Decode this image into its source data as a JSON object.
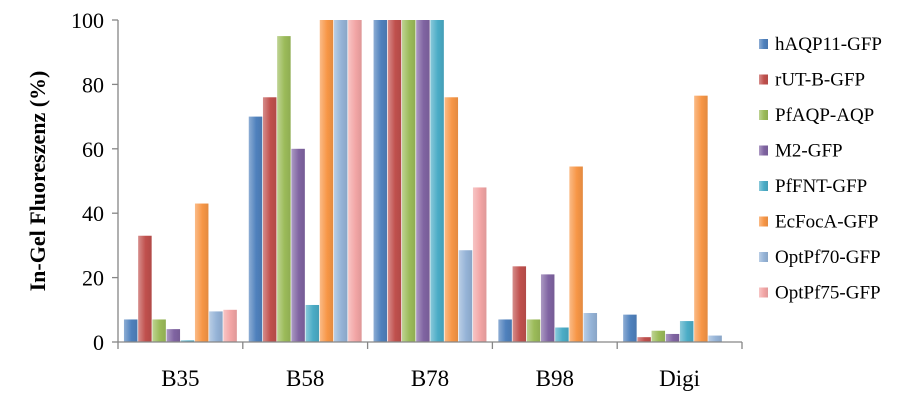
{
  "chart_data": {
    "type": "bar",
    "title": "",
    "xlabel": "",
    "ylabel": "In-Gel Fluoreszenz (%)",
    "ylim": [
      0,
      100
    ],
    "yticks": [
      0,
      20,
      40,
      60,
      80,
      100
    ],
    "grid": false,
    "legend_position": "right",
    "categories": [
      "B35",
      "B58",
      "B78",
      "B98",
      "Digi"
    ],
    "series": [
      {
        "name": "hAQP11-GFP",
        "color": "#4f81bd",
        "values": [
          7,
          70,
          100,
          7,
          8.5
        ]
      },
      {
        "name": "rUT-B-GFP",
        "color": "#c0504d",
        "values": [
          33,
          76,
          100,
          23.5,
          1.5
        ]
      },
      {
        "name": "PfAQP-AQP",
        "color": "#9bbb59",
        "values": [
          7,
          95,
          100,
          7,
          3.5
        ]
      },
      {
        "name": "M2-GFP",
        "color": "#8064a2",
        "values": [
          4,
          60,
          100,
          21,
          2.5
        ]
      },
      {
        "name": "PfFNT-GFP",
        "color": "#4bacc6",
        "values": [
          0.5,
          11.5,
          100,
          4.5,
          6.5
        ]
      },
      {
        "name": "EcFocA-GFP",
        "color": "#f79646",
        "values": [
          43,
          100,
          76,
          54.5,
          76.5
        ]
      },
      {
        "name": "OptPf70-GFP",
        "color": "#95b3d7",
        "values": [
          9.5,
          100,
          28.5,
          9,
          2
        ]
      },
      {
        "name": "OptPf75-GFP",
        "color": "#f2a5a5",
        "values": [
          10,
          100,
          48,
          0,
          0
        ]
      }
    ]
  }
}
